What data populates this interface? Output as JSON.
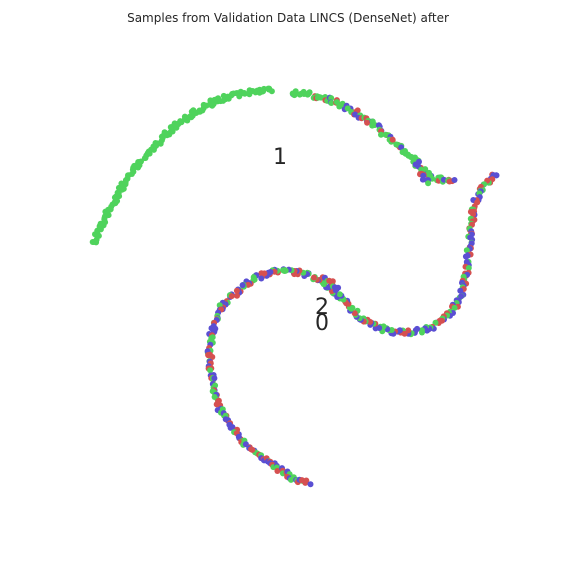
{
  "chart_data": {
    "type": "scatter",
    "title": "Samples from Validation Data LINCS (DenseNet) after",
    "xlabel": "",
    "ylabel": "",
    "grid": false,
    "legend": "none",
    "colors": {
      "green": "#4fd35c",
      "red": "#d65050",
      "blue": "#5a4fd3"
    },
    "cluster_labels": [
      {
        "text": "1",
        "x": 280,
        "y": 157
      },
      {
        "text": "2",
        "x": 322,
        "y": 306
      },
      {
        "text": "0",
        "x": 322,
        "y": 320
      }
    ],
    "curves": [
      {
        "id": "arc-1-left",
        "cluster": "1",
        "colors": [
          "green"
        ],
        "weights": [
          1
        ],
        "points": [
          [
            93,
            243
          ],
          [
            98,
            232
          ],
          [
            105,
            218
          ],
          [
            112,
            205
          ],
          [
            120,
            191
          ],
          [
            130,
            175
          ],
          [
            140,
            163
          ],
          [
            152,
            149
          ],
          [
            165,
            135
          ],
          [
            180,
            122
          ],
          [
            196,
            112
          ],
          [
            212,
            103
          ],
          [
            228,
            97
          ],
          [
            245,
            93
          ],
          [
            260,
            90
          ],
          [
            272,
            90
          ]
        ]
      },
      {
        "id": "arc-1-right",
        "cluster": "1",
        "colors": [
          "green",
          "green",
          "green",
          "blue",
          "red"
        ],
        "weights": [
          1
        ],
        "points": [
          [
            292,
            92
          ],
          [
            310,
            95
          ],
          [
            330,
            100
          ],
          [
            348,
            108
          ],
          [
            362,
            117
          ],
          [
            375,
            126
          ],
          [
            388,
            137
          ],
          [
            400,
            147
          ],
          [
            412,
            158
          ],
          [
            423,
            170
          ],
          [
            432,
            178
          ],
          [
            445,
            180
          ],
          [
            455,
            181
          ]
        ]
      },
      {
        "id": "hook-1",
        "cluster": "1",
        "colors": [
          "blue",
          "green",
          "red"
        ],
        "points": [
          [
            416,
            160
          ],
          [
            420,
            170
          ],
          [
            425,
            178
          ],
          [
            430,
            183
          ]
        ]
      },
      {
        "id": "s-curve-2",
        "cluster": "2",
        "colors": [
          "blue",
          "red",
          "green"
        ],
        "points": [
          [
            497,
            174
          ],
          [
            488,
            180
          ],
          [
            480,
            190
          ],
          [
            475,
            203
          ],
          [
            472,
            220
          ],
          [
            470,
            240
          ],
          [
            468,
            260
          ],
          [
            465,
            280
          ],
          [
            460,
            298
          ],
          [
            452,
            312
          ],
          [
            440,
            322
          ],
          [
            428,
            329
          ],
          [
            415,
            332
          ],
          [
            402,
            333
          ],
          [
            390,
            331
          ],
          [
            378,
            327
          ],
          [
            365,
            320
          ],
          [
            352,
            310
          ],
          [
            342,
            298
          ],
          [
            333,
            290
          ],
          [
            322,
            282
          ],
          [
            310,
            275
          ],
          [
            296,
            272
          ],
          [
            282,
            271
          ],
          [
            268,
            273
          ],
          [
            255,
            278
          ],
          [
            243,
            286
          ],
          [
            232,
            296
          ],
          [
            222,
            307
          ],
          [
            215,
            320
          ],
          [
            211,
            336
          ],
          [
            210,
            352
          ],
          [
            211,
            370
          ],
          [
            214,
            390
          ],
          [
            220,
            410
          ],
          [
            232,
            428
          ],
          [
            246,
            444
          ],
          [
            262,
            458
          ],
          [
            280,
            470
          ],
          [
            296,
            479
          ],
          [
            308,
            484
          ]
        ]
      },
      {
        "id": "stray-2",
        "cluster": "2",
        "colors": [
          "green",
          "red",
          "blue"
        ],
        "points": [
          [
            325,
            278
          ],
          [
            332,
            283
          ],
          [
            338,
            290
          ]
        ]
      }
    ]
  }
}
